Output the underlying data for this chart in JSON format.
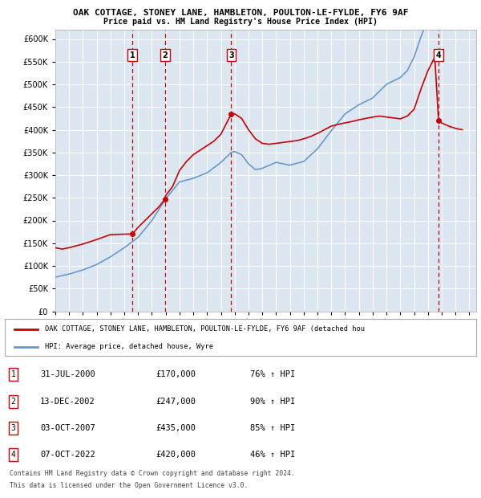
{
  "title_line1": "OAK COTTAGE, STONEY LANE, HAMBLETON, POULTON-LE-FYLDE, FY6 9AF",
  "title_line2": "Price paid vs. HM Land Registry's House Price Index (HPI)",
  "plot_bg_color": "#dce6f1",
  "ylim": [
    0,
    620000
  ],
  "yticks": [
    0,
    50000,
    100000,
    150000,
    200000,
    250000,
    300000,
    350000,
    400000,
    450000,
    500000,
    550000,
    600000
  ],
  "xlim_start": 1995.0,
  "xlim_end": 2025.5,
  "sales": [
    {
      "num": 1,
      "date": "31-JUL-2000",
      "year": 2000.58,
      "price": 170000,
      "pct": "76%",
      "dir": "↑"
    },
    {
      "num": 2,
      "date": "13-DEC-2002",
      "year": 2002.95,
      "price": 247000,
      "pct": "90%",
      "dir": "↑"
    },
    {
      "num": 3,
      "date": "03-OCT-2007",
      "year": 2007.75,
      "price": 435000,
      "pct": "85%",
      "dir": "↑"
    },
    {
      "num": 4,
      "date": "07-OCT-2022",
      "year": 2022.77,
      "price": 420000,
      "pct": "46%",
      "dir": "↑"
    }
  ],
  "hpi_color": "#6699cc",
  "price_color": "#cc0000",
  "legend_label_price": "OAK COTTAGE, STONEY LANE, HAMBLETON, POULTON-LE-FYLDE, FY6 9AF (detached hou",
  "legend_label_hpi": "HPI: Average price, detached house, Wyre",
  "footer_line1": "Contains HM Land Registry data © Crown copyright and database right 2024.",
  "footer_line2": "This data is licensed under the Open Government Licence v3.0."
}
